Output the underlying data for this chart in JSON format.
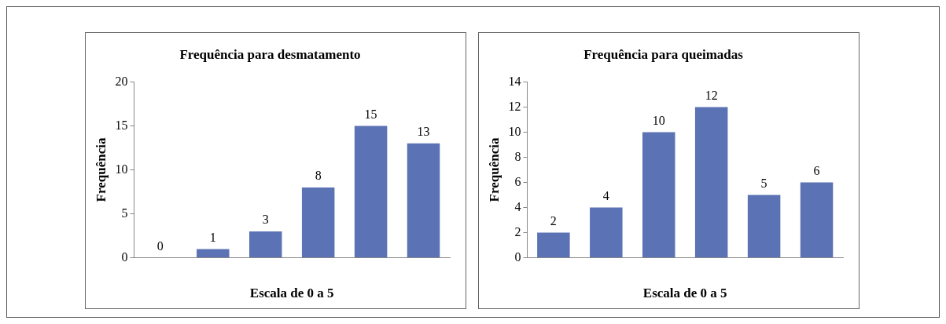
{
  "chart_data": [
    {
      "type": "bar",
      "title": "Frequência para desmatamento",
      "xlabel": "Escala de 0 a 5",
      "ylabel": "Frequência",
      "categories": [
        null,
        null,
        null,
        null,
        null,
        null
      ],
      "values": [
        0,
        1,
        3,
        8,
        15,
        13
      ],
      "color": "#5b72b4",
      "ylim": [
        0,
        20
      ],
      "yticks": [
        0,
        5,
        10,
        15,
        20
      ],
      "grid": false,
      "legend": false,
      "tick_labels": "y",
      "data_labels": true
    },
    {
      "type": "bar",
      "title": "Frequência para queimadas",
      "xlabel": "Escala de 0 a 5",
      "ylabel": "Frequência",
      "categories": [
        null,
        null,
        null,
        null,
        null,
        null
      ],
      "values": [
        2,
        4,
        10,
        12,
        5,
        6
      ],
      "color": "#5b72b4",
      "ylim": [
        0,
        14
      ],
      "yticks": [
        0,
        2,
        4,
        6,
        8,
        10,
        12,
        14
      ],
      "grid": false,
      "legend": false,
      "tick_labels": "y",
      "data_labels": true
    }
  ]
}
